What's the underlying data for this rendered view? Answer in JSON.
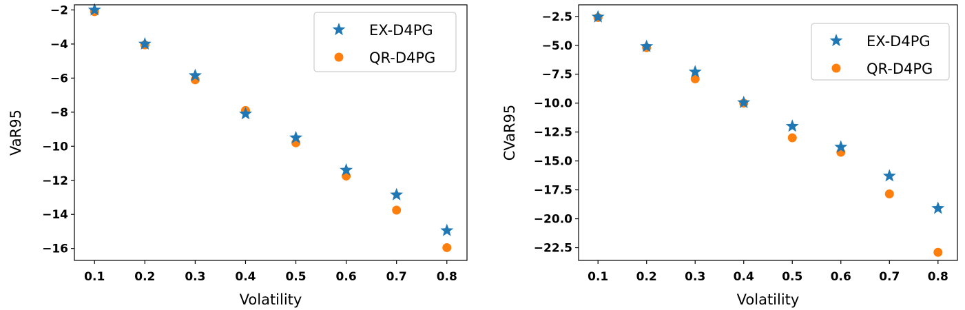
{
  "colors": {
    "ex_series": "#1f77b4",
    "qr_series": "#ff7f0e"
  },
  "chart_data": [
    {
      "type": "scatter",
      "xlabel": "Volatility",
      "ylabel": "VaR95",
      "x": [
        0.1,
        0.2,
        0.3,
        0.4,
        0.5,
        0.6,
        0.7,
        0.8
      ],
      "x_ticks": [
        "0.1",
        "0.2",
        "0.3",
        "0.4",
        "0.5",
        "0.6",
        "0.7",
        "0.8"
      ],
      "y_ticks": [
        -2,
        -4,
        -6,
        -8,
        -10,
        -12,
        -14,
        -16
      ],
      "y_tick_labels": [
        "−2",
        "−4",
        "−6",
        "−8",
        "−10",
        "−12",
        "−14",
        "−16"
      ],
      "xlim": [
        0.06,
        0.84
      ],
      "ylim": [
        -16.7,
        -1.7
      ],
      "grid": false,
      "legend": "top-right",
      "series": [
        {
          "name": "EX-D4PG",
          "marker": "star",
          "color_key": "ex_series",
          "values": [
            -2.0,
            -4.0,
            -5.85,
            -8.1,
            -9.5,
            -11.4,
            -12.85,
            -14.95
          ]
        },
        {
          "name": "QR-D4PG",
          "marker": "circle",
          "color_key": "qr_series",
          "values": [
            -2.1,
            -4.05,
            -6.1,
            -7.9,
            -9.8,
            -11.75,
            -13.75,
            -15.95
          ]
        }
      ]
    },
    {
      "type": "scatter",
      "xlabel": "Volatility",
      "ylabel": "CVaR95",
      "x": [
        0.1,
        0.2,
        0.3,
        0.4,
        0.5,
        0.6,
        0.7,
        0.8
      ],
      "x_ticks": [
        "0.1",
        "0.2",
        "0.3",
        "0.4",
        "0.5",
        "0.6",
        "0.7",
        "0.8"
      ],
      "y_ticks": [
        -2.5,
        -5.0,
        -7.5,
        -10.0,
        -12.5,
        -15.0,
        -17.5,
        -20.0,
        -22.5
      ],
      "y_tick_labels": [
        "−2.5",
        "−5.0",
        "−7.5",
        "−10.0",
        "−12.5",
        "−15.0",
        "−17.5",
        "−20.0",
        "−22.5"
      ],
      "xlim": [
        0.06,
        0.84
      ],
      "ylim": [
        -23.6,
        -1.5
      ],
      "grid": false,
      "legend": "top-right",
      "series": [
        {
          "name": "EX-D4PG",
          "marker": "star",
          "color_key": "ex_series",
          "values": [
            -2.55,
            -5.1,
            -7.3,
            -9.95,
            -12.0,
            -13.8,
            -16.3,
            -19.1
          ]
        },
        {
          "name": "QR-D4PG",
          "marker": "circle",
          "color_key": "qr_series",
          "values": [
            -2.6,
            -5.2,
            -7.9,
            -10.0,
            -13.0,
            -14.25,
            -17.85,
            -22.9
          ]
        }
      ]
    }
  ]
}
